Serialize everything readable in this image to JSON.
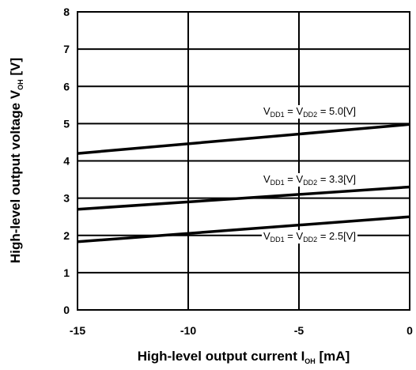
{
  "chart_data": {
    "type": "line",
    "title": "",
    "xlabel": {
      "main": "High-level output current I",
      "sub": "OH",
      "unit": " [mA]"
    },
    "ylabel": {
      "main": "High-level output voltage V",
      "sub": "OH",
      "unit": " [V]"
    },
    "xlim": [
      -15,
      0
    ],
    "ylim": [
      0,
      8
    ],
    "xticks": [
      -15,
      -10,
      -5,
      0
    ],
    "yticks": [
      0,
      1,
      2,
      3,
      4,
      5,
      6,
      7,
      8
    ],
    "grid": true,
    "legend": "none",
    "series": [
      {
        "name": "VDD1 = VDD2 = 5.0[V]",
        "label": {
          "v1": "V",
          "s1": "DD1",
          "eq1": " = V",
          "s2": "DD2",
          "rest": " = 5.0[V]"
        },
        "x": [
          -15,
          0
        ],
        "y": [
          4.2,
          4.98
        ]
      },
      {
        "name": "VDD1 = VDD2 = 3.3[V]",
        "label": {
          "v1": "V",
          "s1": "DD1",
          "eq1": " = V",
          "s2": "DD2",
          "rest": " = 3.3[V]"
        },
        "x": [
          -15,
          0
        ],
        "y": [
          2.7,
          3.3
        ]
      },
      {
        "name": "VDD1 = VDD2 = 2.5[V]",
        "label": {
          "v1": "V",
          "s1": "DD1",
          "eq1": " = V",
          "s2": "DD2",
          "rest": " = 2.5[V]"
        },
        "x": [
          -15,
          0
        ],
        "y": [
          1.83,
          2.5
        ]
      }
    ],
    "colors": {
      "line": "#000000",
      "grid": "#000000",
      "background": "#ffffff"
    }
  }
}
